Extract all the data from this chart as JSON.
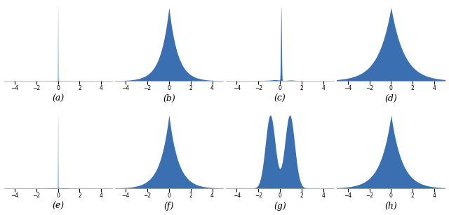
{
  "fill_color": "#3A70B2",
  "spike_color": "#A8C8E8",
  "xlim": [
    -5,
    5
  ],
  "xticks": [
    -4,
    -2,
    0,
    2,
    4
  ],
  "labels": [
    "(a)",
    "(b)",
    "(c)",
    "(d)",
    "(e)",
    "(f)",
    "(g)",
    "(h)"
  ],
  "label_fontsize": 9,
  "bg_color": "#ffffff",
  "figsize": [
    6.4,
    3.06
  ],
  "dpi": 100
}
